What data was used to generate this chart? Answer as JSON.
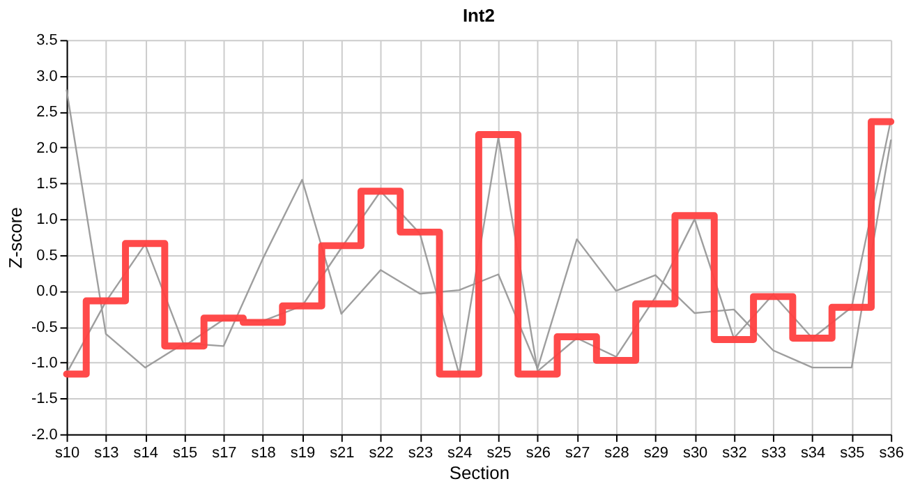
{
  "chart_data": {
    "type": "line",
    "title": "Int2",
    "xlabel": "Section",
    "ylabel": "Z-score",
    "categories": [
      "s10",
      "s13",
      "s14",
      "s15",
      "s17",
      "s18",
      "s19",
      "s21",
      "s22",
      "s23",
      "s24",
      "s25",
      "s26",
      "s27",
      "s28",
      "s29",
      "s30",
      "s32",
      "s33",
      "s34",
      "s35",
      "s36"
    ],
    "series": [
      {
        "color": "#999999",
        "values": [
          2.8,
          -0.6,
          -1.07,
          -0.73,
          -0.77,
          0.45,
          1.55,
          -0.32,
          0.29,
          -0.04,
          0.01,
          0.23,
          -1.08,
          0.72,
          0.0,
          0.22,
          -0.31,
          -0.26,
          -0.83,
          -1.07,
          -1.07,
          2.1
        ]
      },
      {
        "color": "#999999",
        "values": [
          -1.15,
          -0.15,
          0.65,
          -0.77,
          -0.4,
          -0.42,
          -0.21,
          0.6,
          1.39,
          0.8,
          -1.16,
          2.14,
          -1.12,
          -0.66,
          -0.92,
          -0.09,
          1.0,
          -0.66,
          -0.05,
          -0.66,
          -0.23,
          2.38
        ]
      },
      {
        "type": "step",
        "color": "#ff4040",
        "values": [
          -1.16,
          -0.14,
          0.66,
          -0.77,
          -0.38,
          -0.44,
          -0.21,
          0.63,
          1.39,
          0.82,
          -1.16,
          2.18,
          -1.16,
          -0.64,
          -0.97,
          -0.18,
          1.05,
          -0.68,
          -0.08,
          -0.66,
          -0.23,
          2.36
        ]
      }
    ],
    "ylim": [
      -2.0,
      3.5
    ],
    "yticks": [
      {
        "value": -2,
        "label": "-2.0"
      },
      {
        "value": -1.5,
        "label": "-1.5"
      },
      {
        "value": -1,
        "label": "-1.0"
      },
      {
        "value": -0.5,
        "label": "-0.5"
      },
      {
        "value": 0,
        "label": "0.0"
      },
      {
        "value": 0.5,
        "label": "0.5"
      },
      {
        "value": 1,
        "label": "1.0"
      },
      {
        "value": 1.5,
        "label": "1.5"
      },
      {
        "value": 2,
        "label": "2.0"
      },
      {
        "value": 2.5,
        "label": "2.5"
      },
      {
        "value": 3,
        "label": "3.0"
      },
      {
        "value": 3.5,
        "label": "3.5"
      }
    ],
    "grid": true
  }
}
